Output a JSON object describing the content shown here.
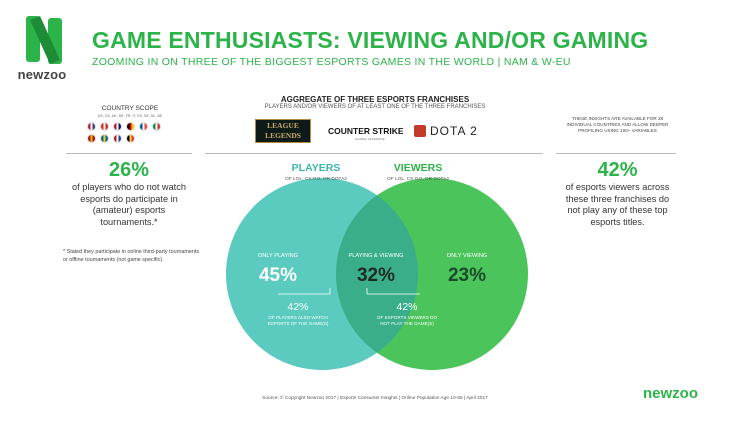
{
  "header": {
    "logo_word": "newzoo",
    "title": "GAME ENTHUSIASTS: VIEWING AND/OR GAMING",
    "subtitle": "ZOOMING IN ON THREE OF THE BIGGEST ESPORTS GAMES IN THE WORLD | NAM & W-EU"
  },
  "country_scope": {
    "title": "COUNTRY SCOPE",
    "codes": "US, CA, UK, DE, FR, IT, ES, SE, NL, BE",
    "flags": [
      {
        "colors": [
          "#b22234",
          "#ffffff",
          "#3c3b6e"
        ]
      },
      {
        "colors": [
          "#d52b1e",
          "#ffffff",
          "#d52b1e"
        ]
      },
      {
        "colors": [
          "#c8102e",
          "#ffffff",
          "#012169"
        ]
      },
      {
        "colors": [
          "#000000",
          "#dd0000",
          "#ffce00"
        ]
      },
      {
        "colors": [
          "#0055a4",
          "#ffffff",
          "#ef4135"
        ]
      },
      {
        "colors": [
          "#009246",
          "#ffffff",
          "#ce2b37"
        ]
      },
      {
        "colors": [
          "#aa151b",
          "#f1bf00",
          "#aa151b"
        ]
      },
      {
        "colors": [
          "#006aa7",
          "#fecc00",
          "#006aa7"
        ]
      },
      {
        "colors": [
          "#ae1c28",
          "#ffffff",
          "#21468b"
        ]
      },
      {
        "colors": [
          "#000000",
          "#fdda24",
          "#ef3340"
        ]
      }
    ]
  },
  "aggregate": {
    "title": "AGGREGATE OF THREE ESPORTS FRANCHISES",
    "subtitle": "PLAYERS AND/OR VIEWERS OF AT LEAST ONE OF THE THREE FRANCHISES",
    "logos": {
      "lol_line1": "LEAGUE",
      "lol_line2": "LEGENDS",
      "cs": "COUNTER STRIKE",
      "cs_sub": "GLOBAL OFFENSIVE",
      "dota": "DOTA 2"
    }
  },
  "left_stat": {
    "value": "26%",
    "text": "of players who do not watch esports do participate in (amateur) esports tournaments.*",
    "footnote": "* Stated they participate in online third-party tournaments or offline tournaments (not game specific)."
  },
  "right_stat": {
    "note": "THESE INSIGHTS ARE AVAILABLE FOR 28 INDIVIDUAL COUNTRIES AND ALLOW DEEPER PROFILING USING 100+ VARIABLES",
    "value": "42%",
    "text": "of esports viewers across these three franchises do not play any of these top esports titles."
  },
  "chart_data": {
    "type": "venn",
    "sets": [
      {
        "name": "PLAYERS",
        "sublabel": "OF LOL, CS:GO, OR DOTA2",
        "color": "#5ccbbf"
      },
      {
        "name": "VIEWERS",
        "sublabel": "OF LOL, CS:GO, OR DOTA2",
        "color": "#4cc45c"
      }
    ],
    "regions": [
      {
        "label": "ONLY PLAYING",
        "value": 45,
        "display": "45%",
        "sub_value": "42%",
        "sub_text": "OF PLAYERS ALSO WATCH ESPORTS OF THE GAME(S)"
      },
      {
        "label": "PLAYING & VIEWING",
        "value": 32,
        "display": "32%"
      },
      {
        "label": "ONLY VIEWING",
        "value": 23,
        "display": "23%",
        "sub_value": "42%",
        "sub_text": "OF ESPORTS VIEWERS DO NOT PLAY THE GAME(S)"
      }
    ],
    "overlap_color": "#3aae8a"
  },
  "footer": {
    "source": "Source: © Copyright Newzoo 2017 | Esports Consumer Insights | Online Population Age 10-65 | April 2017",
    "logo": "newzoo"
  }
}
